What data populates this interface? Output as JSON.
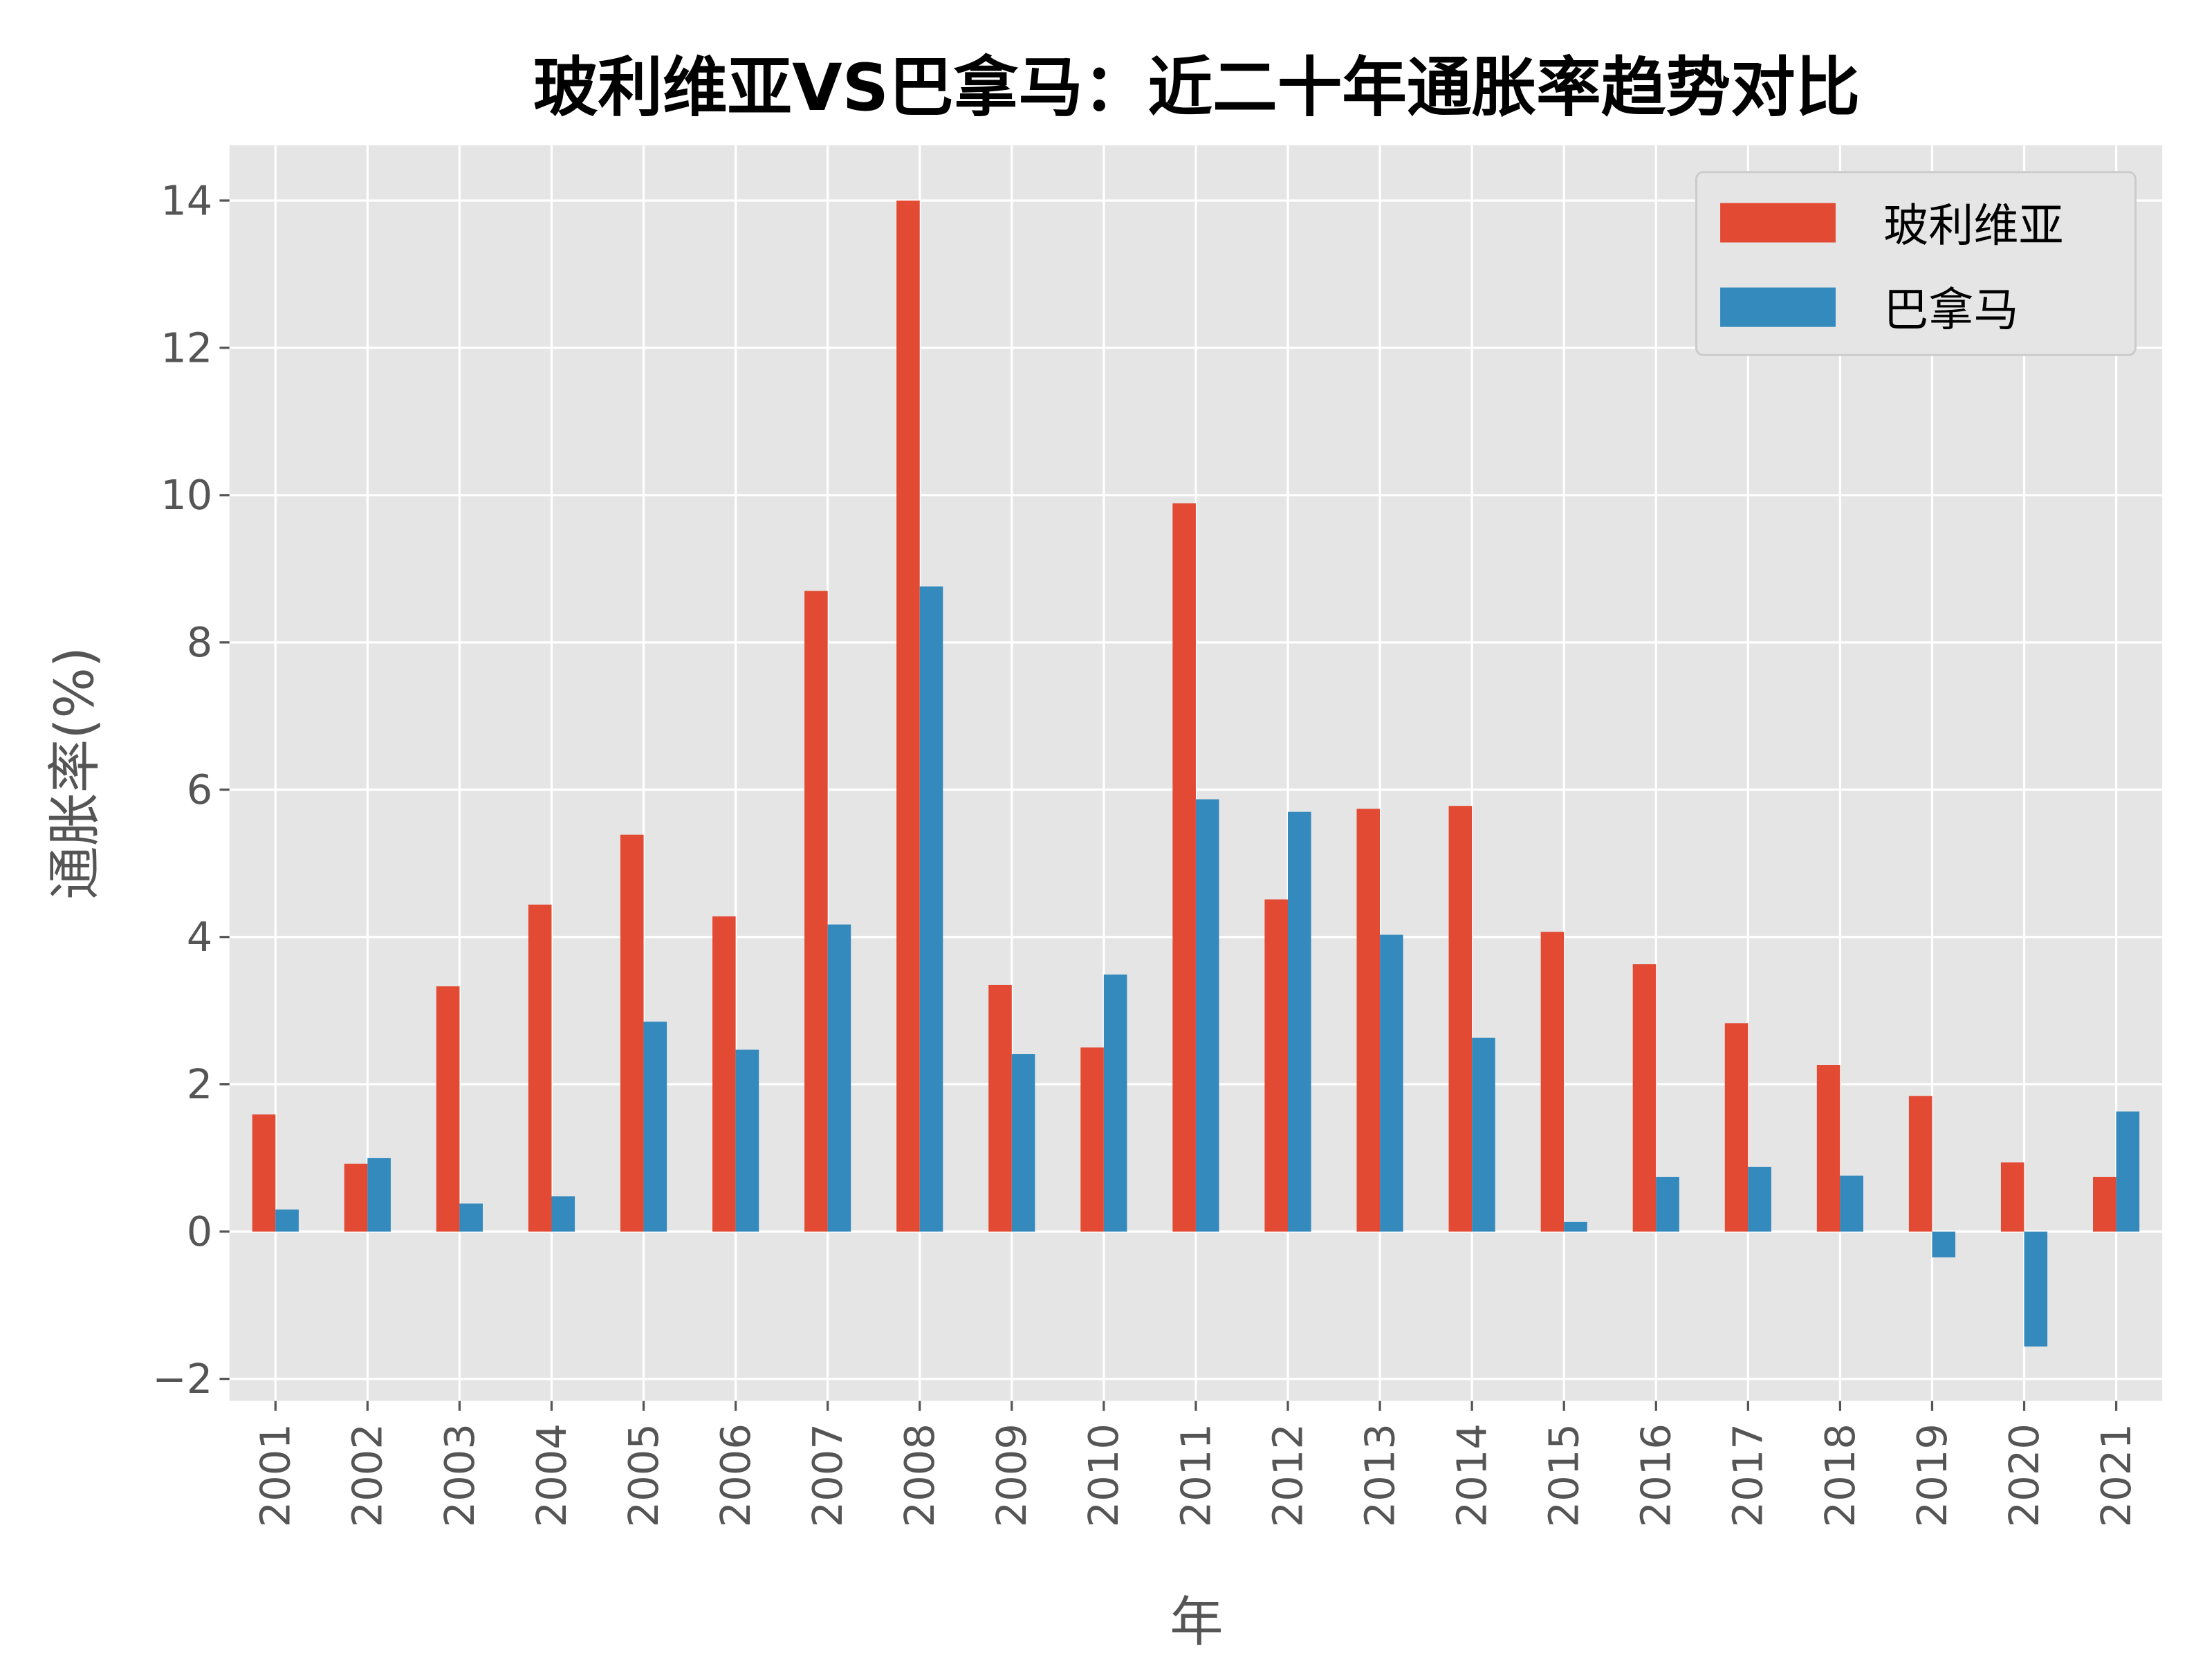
{
  "chart_data": {
    "type": "bar",
    "title": "玻利维亚VS巴拿马：近二十年通胀率趋势对比",
    "xlabel": "年",
    "ylabel": "通胀率(%)",
    "ylim": [
      -2.3,
      14.75
    ],
    "yticks": [
      -2,
      0,
      2,
      4,
      6,
      8,
      10,
      12,
      14
    ],
    "grid": true,
    "legend_position": "top-right",
    "background": "#E5E5E5",
    "categories": [
      "2001",
      "2002",
      "2003",
      "2004",
      "2005",
      "2006",
      "2007",
      "2008",
      "2009",
      "2010",
      "2011",
      "2012",
      "2013",
      "2014",
      "2015",
      "2016",
      "2017",
      "2018",
      "2019",
      "2020",
      "2021"
    ],
    "series": [
      {
        "name": "玻利维亚",
        "color": "#E24A33",
        "values": [
          1.59,
          0.92,
          3.33,
          4.44,
          5.39,
          4.28,
          8.7,
          14.0,
          3.35,
          2.5,
          9.89,
          4.51,
          5.74,
          5.78,
          4.07,
          3.63,
          2.83,
          2.26,
          1.84,
          0.94,
          0.74
        ]
      },
      {
        "name": "巴拿马",
        "color": "#348ABD",
        "values": [
          0.3,
          1.0,
          0.38,
          0.48,
          2.85,
          2.47,
          4.17,
          8.76,
          2.41,
          3.49,
          5.87,
          5.7,
          4.03,
          2.63,
          0.13,
          0.74,
          0.88,
          0.76,
          -0.35,
          -1.56,
          1.63
        ]
      }
    ]
  }
}
